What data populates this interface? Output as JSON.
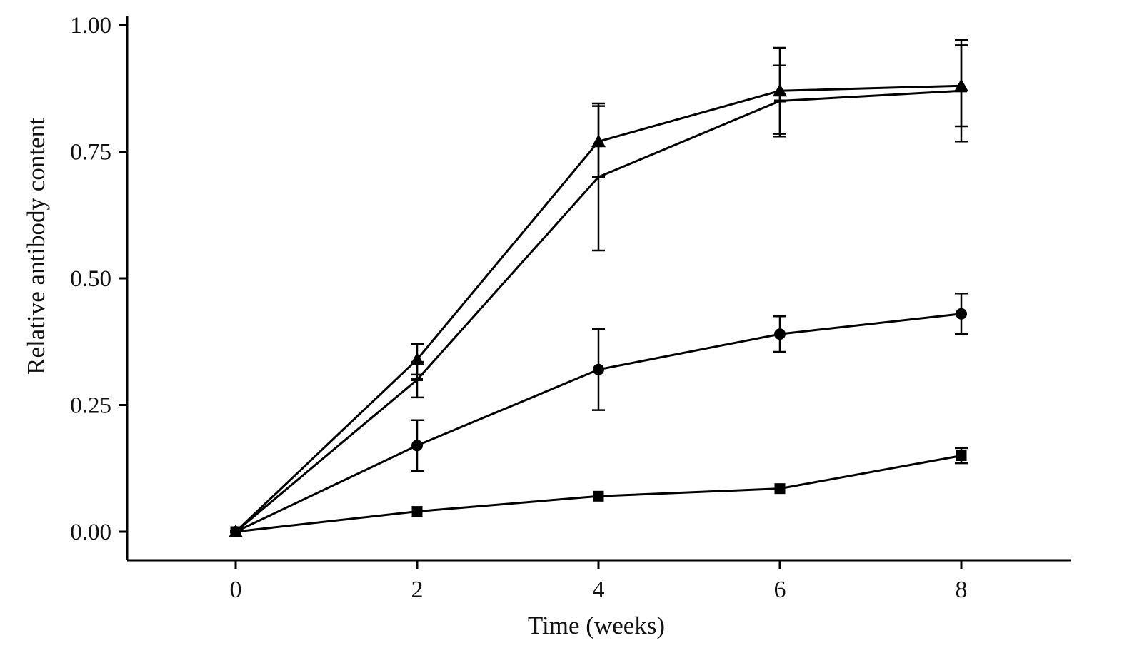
{
  "chart_data": {
    "type": "line",
    "xlabel": "Time (weeks)",
    "ylabel": "Relative antibody content",
    "x": [
      0,
      2,
      4,
      6,
      8
    ],
    "xticklabels": [
      "0",
      "2",
      "4",
      "6",
      "8"
    ],
    "ylim": [
      0,
      1.0
    ],
    "yticks": [
      0.0,
      0.25,
      0.5,
      0.75,
      1.0
    ],
    "yticklabels": [
      "0.00",
      "0.25",
      "0.50",
      "0.75",
      "1.00"
    ],
    "grid": false,
    "legend": "none",
    "line_color": "#000000",
    "series": [
      {
        "name": "triangle-upper",
        "marker": "triangle",
        "values": [
          0.0,
          0.34,
          0.77,
          0.87,
          0.88
        ],
        "err": [
          0.0,
          0.03,
          0.07,
          0.085,
          0.08
        ]
      },
      {
        "name": "dash-lower",
        "marker": "dash",
        "values": [
          0.0,
          0.3,
          0.7,
          0.85,
          0.87
        ],
        "err": [
          0.0,
          0.035,
          0.145,
          0.07,
          0.1
        ]
      },
      {
        "name": "circle",
        "marker": "circle",
        "values": [
          0.0,
          0.17,
          0.32,
          0.39,
          0.43
        ],
        "err": [
          0.0,
          0.05,
          0.08,
          0.035,
          0.04
        ]
      },
      {
        "name": "square",
        "marker": "square",
        "values": [
          0.0,
          0.04,
          0.07,
          0.085,
          0.15
        ],
        "err": [
          0.0,
          0.0,
          0.0,
          0.0,
          0.015
        ]
      }
    ]
  }
}
